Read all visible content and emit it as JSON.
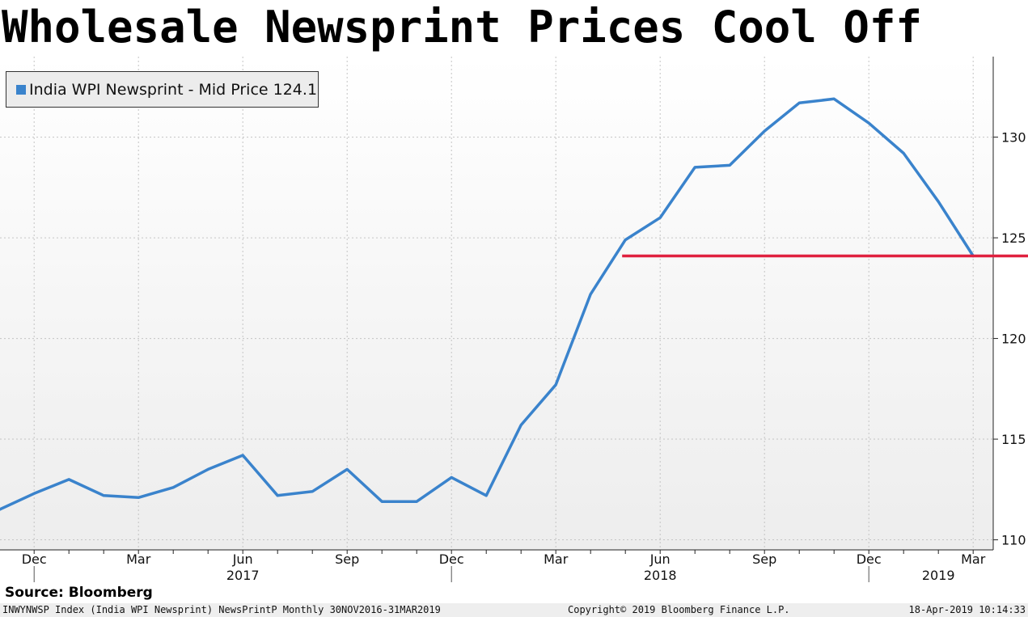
{
  "title": "Wholesale Newsprint Prices Cool Off",
  "source": "Source: Bloomberg",
  "footer": {
    "left": "INWYNWSP Index (India WPI Newsprint) NewsPrintP  Monthly 30NOV2016-31MAR2019",
    "center": "Copyright© 2019 Bloomberg Finance L.P.",
    "right": "18-Apr-2019 10:14:33"
  },
  "colors": {
    "series": "#3a83cc",
    "reference": "#e0213f",
    "plot_bg_top": "#ffffff",
    "plot_bg_bottom": "#ededed"
  },
  "chart_data": {
    "type": "line",
    "title": "Wholesale Newsprint Prices Cool Off",
    "legend": {
      "label": "India WPI Newsprint - Mid Price 124.1",
      "placement": "top-left"
    },
    "x": [
      "2016-11",
      "2016-12",
      "2017-01",
      "2017-02",
      "2017-03",
      "2017-04",
      "2017-05",
      "2017-06",
      "2017-07",
      "2017-08",
      "2017-09",
      "2017-10",
      "2017-11",
      "2017-12",
      "2018-01",
      "2018-02",
      "2018-03",
      "2018-04",
      "2018-05",
      "2018-06",
      "2018-07",
      "2018-08",
      "2018-09",
      "2018-10",
      "2018-11",
      "2018-12",
      "2019-01",
      "2019-02",
      "2019-03"
    ],
    "series": [
      {
        "name": "India WPI Newsprint - Mid Price",
        "values": [
          111.5,
          112.3,
          113.0,
          112.2,
          112.1,
          112.6,
          113.5,
          114.2,
          112.2,
          112.4,
          113.5,
          111.9,
          111.9,
          113.1,
          112.2,
          115.7,
          117.7,
          122.2,
          124.9,
          126.0,
          128.5,
          128.6,
          130.3,
          131.7,
          131.9,
          130.7,
          129.2,
          126.8,
          124.1
        ]
      },
      {
        "name": "",
        "values": [
          124.1,
          124.1
        ],
        "x": [
          "2018-05",
          "2019-03"
        ],
        "style": "reference-line"
      }
    ],
    "x_tick_labels": [
      {
        "x": "2016-12",
        "label": "Dec"
      },
      {
        "x": "2017-03",
        "label": "Mar"
      },
      {
        "x": "2017-06",
        "label": "Jun"
      },
      {
        "x": "2017-09",
        "label": "Sep"
      },
      {
        "x": "2017-12",
        "label": "Dec"
      },
      {
        "x": "2018-03",
        "label": "Mar"
      },
      {
        "x": "2018-06",
        "label": "Jun"
      },
      {
        "x": "2018-09",
        "label": "Sep"
      },
      {
        "x": "2018-12",
        "label": "Dec"
      },
      {
        "x": "2019-03",
        "label": "Mar"
      }
    ],
    "year_labels": [
      {
        "x": "2017-06",
        "label": "2017"
      },
      {
        "x": "2018-06",
        "label": "2018"
      },
      {
        "x": "2019-02",
        "label": "2019"
      }
    ],
    "year_dividers": [
      "2016-12",
      "2017-12",
      "2018-12"
    ],
    "y_ticks": [
      110,
      115,
      120,
      125,
      130
    ],
    "ylim": [
      109.5,
      134
    ],
    "y_axis_position": "right",
    "grid": true,
    "xlabel": "",
    "ylabel": ""
  }
}
